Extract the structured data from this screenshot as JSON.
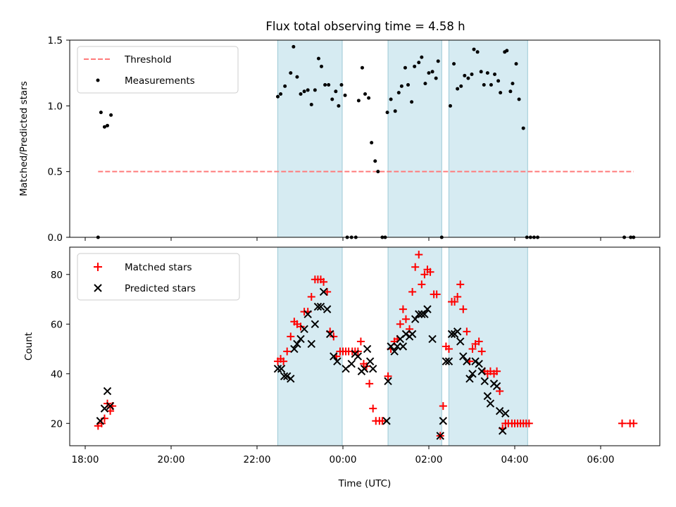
{
  "chart_data": [
    {
      "type": "scatter",
      "title": "Flux total observing time = 4.58 h",
      "ylabel": "Matched/Predicted stars",
      "xlabel": "",
      "ylim": [
        0,
        1.5
      ],
      "yticks": [
        "0.0",
        "0.5",
        "1.0",
        "1.5"
      ],
      "legend_position": "top-left",
      "grid": false,
      "threshold": {
        "name": "Threshold",
        "value": 0.5,
        "x_start": "18:18",
        "x_end": "06:46",
        "color": "#ff7b7b",
        "style": "dashed"
      },
      "shaded_regions": [
        {
          "start": "22:29",
          "end": "23:59"
        },
        {
          "start": "01:03",
          "end": "02:18"
        },
        {
          "start": "02:28",
          "end": "04:18"
        }
      ],
      "series": [
        {
          "name": "Measurements",
          "color": "#000000",
          "points": [
            [
              "18:18",
              0.0
            ],
            [
              "18:22",
              0.95
            ],
            [
              "18:27",
              0.84
            ],
            [
              "18:31",
              0.85
            ],
            [
              "18:36",
              0.93
            ],
            [
              "22:29",
              1.07
            ],
            [
              "22:33",
              1.09
            ],
            [
              "22:39",
              1.15
            ],
            [
              "22:47",
              1.25
            ],
            [
              "22:51",
              1.45
            ],
            [
              "22:56",
              1.22
            ],
            [
              "23:01",
              1.09
            ],
            [
              "23:06",
              1.11
            ],
            [
              "23:11",
              1.12
            ],
            [
              "23:16",
              1.01
            ],
            [
              "23:21",
              1.12
            ],
            [
              "23:26",
              1.36
            ],
            [
              "23:30",
              1.3
            ],
            [
              "23:35",
              1.16
            ],
            [
              "23:40",
              1.16
            ],
            [
              "23:45",
              1.05
            ],
            [
              "23:50",
              1.11
            ],
            [
              "23:54",
              1.0
            ],
            [
              "23:58",
              1.16
            ],
            [
              "00:03",
              1.08
            ],
            [
              "00:06",
              0.0
            ],
            [
              "00:12",
              0.0
            ],
            [
              "00:18",
              0.0
            ],
            [
              "00:22",
              1.04
            ],
            [
              "00:27",
              1.29
            ],
            [
              "00:31",
              1.09
            ],
            [
              "00:36",
              1.06
            ],
            [
              "00:40",
              0.72
            ],
            [
              "00:45",
              0.58
            ],
            [
              "00:49",
              0.5
            ],
            [
              "00:55",
              0.0
            ],
            [
              "00:59",
              0.0
            ],
            [
              "01:02",
              0.95
            ],
            [
              "01:07",
              1.05
            ],
            [
              "01:13",
              0.96
            ],
            [
              "01:18",
              1.1
            ],
            [
              "01:22",
              1.15
            ],
            [
              "01:27",
              1.29
            ],
            [
              "01:31",
              1.16
            ],
            [
              "01:36",
              1.03
            ],
            [
              "01:40",
              1.3
            ],
            [
              "01:46",
              1.33
            ],
            [
              "01:50",
              1.37
            ],
            [
              "01:55",
              1.17
            ],
            [
              "02:00",
              1.25
            ],
            [
              "02:05",
              1.26
            ],
            [
              "02:10",
              1.21
            ],
            [
              "02:13",
              1.34
            ],
            [
              "02:18",
              0.0
            ],
            [
              "02:30",
              1.0
            ],
            [
              "02:35",
              1.32
            ],
            [
              "02:40",
              1.13
            ],
            [
              "02:45",
              1.15
            ],
            [
              "02:50",
              1.23
            ],
            [
              "02:55",
              1.21
            ],
            [
              "03:00",
              1.24
            ],
            [
              "03:03",
              1.43
            ],
            [
              "03:08",
              1.41
            ],
            [
              "03:13",
              1.26
            ],
            [
              "03:17",
              1.16
            ],
            [
              "03:22",
              1.25
            ],
            [
              "03:27",
              1.16
            ],
            [
              "03:32",
              1.24
            ],
            [
              "03:37",
              1.19
            ],
            [
              "03:40",
              1.1
            ],
            [
              "03:46",
              1.41
            ],
            [
              "03:49",
              1.42
            ],
            [
              "03:54",
              1.11
            ],
            [
              "03:57",
              1.17
            ],
            [
              "04:02",
              1.32
            ],
            [
              "04:06",
              1.05
            ],
            [
              "04:12",
              0.83
            ],
            [
              "04:17",
              0.0
            ],
            [
              "04:22",
              0.0
            ],
            [
              "04:27",
              0.0
            ],
            [
              "04:32",
              0.0
            ],
            [
              "06:33",
              0.0
            ],
            [
              "06:42",
              0.0
            ],
            [
              "06:46",
              0.0
            ]
          ]
        }
      ]
    },
    {
      "type": "scatter",
      "title": "",
      "xlabel": "Time (UTC)",
      "ylabel": "Count",
      "ylim": [
        11,
        91
      ],
      "yticks": [
        "20",
        "40",
        "60",
        "80"
      ],
      "xticks": [
        "18:00",
        "20:00",
        "22:00",
        "00:00",
        "02:00",
        "04:00",
        "06:00"
      ],
      "legend_position": "top-left",
      "grid": false,
      "shaded_regions": [
        {
          "start": "22:29",
          "end": "23:59"
        },
        {
          "start": "01:03",
          "end": "02:18"
        },
        {
          "start": "02:28",
          "end": "04:18"
        }
      ],
      "series": [
        {
          "name": "Matched stars",
          "marker": "+",
          "color": "#ff0000",
          "points": [
            [
              "18:18",
              19
            ],
            [
              "18:23",
              20
            ],
            [
              "18:27",
              22
            ],
            [
              "18:31",
              28
            ],
            [
              "18:35",
              25
            ],
            [
              "18:38",
              27
            ],
            [
              "22:29",
              45
            ],
            [
              "22:33",
              46
            ],
            [
              "22:37",
              45
            ],
            [
              "22:42",
              49
            ],
            [
              "22:47",
              55
            ],
            [
              "22:52",
              61
            ],
            [
              "22:56",
              60
            ],
            [
              "23:01",
              59
            ],
            [
              "23:06",
              65
            ],
            [
              "23:11",
              65
            ],
            [
              "23:16",
              71
            ],
            [
              "23:21",
              78
            ],
            [
              "23:25",
              78
            ],
            [
              "23:29",
              78
            ],
            [
              "23:33",
              77
            ],
            [
              "23:38",
              73
            ],
            [
              "23:42",
              57
            ],
            [
              "23:47",
              55
            ],
            [
              "23:51",
              47
            ],
            [
              "23:56",
              49
            ],
            [
              "24:00",
              49
            ],
            [
              "24:04",
              49
            ],
            [
              "24:08",
              49
            ],
            [
              "24:13",
              49
            ],
            [
              "24:17",
              49
            ],
            [
              "24:21",
              49
            ],
            [
              "24:25",
              53
            ],
            [
              "24:29",
              44
            ],
            [
              "24:33",
              43
            ],
            [
              "24:37",
              36
            ],
            [
              "24:42",
              26
            ],
            [
              "24:46",
              21
            ],
            [
              "24:51",
              21
            ],
            [
              "24:55",
              21
            ],
            [
              "25:03",
              39
            ],
            [
              "25:07",
              50
            ],
            [
              "25:12",
              53
            ],
            [
              "25:16",
              54
            ],
            [
              "25:20",
              60
            ],
            [
              "25:24",
              66
            ],
            [
              "25:28",
              62
            ],
            [
              "25:33",
              58
            ],
            [
              "25:37",
              73
            ],
            [
              "25:41",
              83
            ],
            [
              "25:46",
              88
            ],
            [
              "25:50",
              76
            ],
            [
              "25:54",
              80
            ],
            [
              "25:58",
              82
            ],
            [
              "26:02",
              81
            ],
            [
              "26:07",
              72
            ],
            [
              "26:11",
              72
            ],
            [
              "26:16",
              15
            ],
            [
              "26:20",
              27
            ],
            [
              "26:24",
              51
            ],
            [
              "26:28",
              50
            ],
            [
              "26:32",
              69
            ],
            [
              "26:36",
              69
            ],
            [
              "26:40",
              71
            ],
            [
              "26:44",
              76
            ],
            [
              "26:48",
              66
            ],
            [
              "26:53",
              57
            ],
            [
              "26:57",
              45
            ],
            [
              "27:01",
              50
            ],
            [
              "27:05",
              52
            ],
            [
              "27:10",
              53
            ],
            [
              "27:14",
              49
            ],
            [
              "27:18",
              41
            ],
            [
              "27:22",
              40
            ],
            [
              "27:26",
              41
            ],
            [
              "27:31",
              40
            ],
            [
              "27:35",
              41
            ],
            [
              "27:39",
              33
            ],
            [
              "27:43",
              18
            ],
            [
              "27:47",
              20
            ],
            [
              "27:51",
              20
            ],
            [
              "27:56",
              20
            ],
            [
              "28:00",
              20
            ],
            [
              "28:04",
              20
            ],
            [
              "28:08",
              20
            ],
            [
              "28:12",
              20
            ],
            [
              "28:16",
              20
            ],
            [
              "28:20",
              20
            ],
            [
              "30:30",
              20
            ],
            [
              "30:41",
              20
            ],
            [
              "30:46",
              20
            ]
          ]
        },
        {
          "name": "Predicted stars",
          "marker": "x",
          "color": "#000000",
          "points": [
            [
              "18:21",
              21
            ],
            [
              "18:27",
              26
            ],
            [
              "18:31",
              33
            ],
            [
              "18:35",
              27
            ],
            [
              "22:29",
              42
            ],
            [
              "22:34",
              42
            ],
            [
              "22:38",
              39
            ],
            [
              "22:42",
              39
            ],
            [
              "22:47",
              38
            ],
            [
              "22:52",
              50
            ],
            [
              "22:56",
              52
            ],
            [
              "23:01",
              54
            ],
            [
              "23:06",
              58
            ],
            [
              "23:11",
              64
            ],
            [
              "23:16",
              52
            ],
            [
              "23:21",
              60
            ],
            [
              "23:25",
              67
            ],
            [
              "23:29",
              67
            ],
            [
              "23:33",
              73
            ],
            [
              "23:38",
              66
            ],
            [
              "23:42",
              56
            ],
            [
              "23:47",
              47
            ],
            [
              "23:52",
              45
            ],
            [
              "24:04",
              42
            ],
            [
              "24:12",
              44
            ],
            [
              "24:17",
              48
            ],
            [
              "24:21",
              47
            ],
            [
              "24:26",
              41
            ],
            [
              "24:30",
              42
            ],
            [
              "24:34",
              50
            ],
            [
              "24:38",
              45
            ],
            [
              "24:42",
              42
            ],
            [
              "25:01",
              21
            ],
            [
              "25:03",
              37
            ],
            [
              "25:07",
              51
            ],
            [
              "25:12",
              49
            ],
            [
              "25:16",
              51
            ],
            [
              "25:20",
              54
            ],
            [
              "25:24",
              51
            ],
            [
              "25:28",
              56
            ],
            [
              "25:33",
              55
            ],
            [
              "25:37",
              56
            ],
            [
              "25:41",
              62
            ],
            [
              "25:46",
              64
            ],
            [
              "25:50",
              64
            ],
            [
              "25:54",
              64
            ],
            [
              "25:58",
              66
            ],
            [
              "26:05",
              54
            ],
            [
              "26:16",
              15
            ],
            [
              "26:20",
              21
            ],
            [
              "26:24",
              45
            ],
            [
              "26:28",
              45
            ],
            [
              "26:32",
              56
            ],
            [
              "26:36",
              56
            ],
            [
              "26:40",
              57
            ],
            [
              "26:44",
              53
            ],
            [
              "26:48",
              47
            ],
            [
              "26:53",
              45
            ],
            [
              "26:57",
              38
            ],
            [
              "27:01",
              40
            ],
            [
              "27:05",
              45
            ],
            [
              "27:10",
              44
            ],
            [
              "27:14",
              41
            ],
            [
              "27:18",
              37
            ],
            [
              "27:22",
              31
            ],
            [
              "27:26",
              28
            ],
            [
              "27:31",
              36
            ],
            [
              "27:35",
              35
            ],
            [
              "27:39",
              25
            ],
            [
              "27:43",
              17
            ],
            [
              "27:47",
              24
            ]
          ]
        }
      ]
    }
  ]
}
